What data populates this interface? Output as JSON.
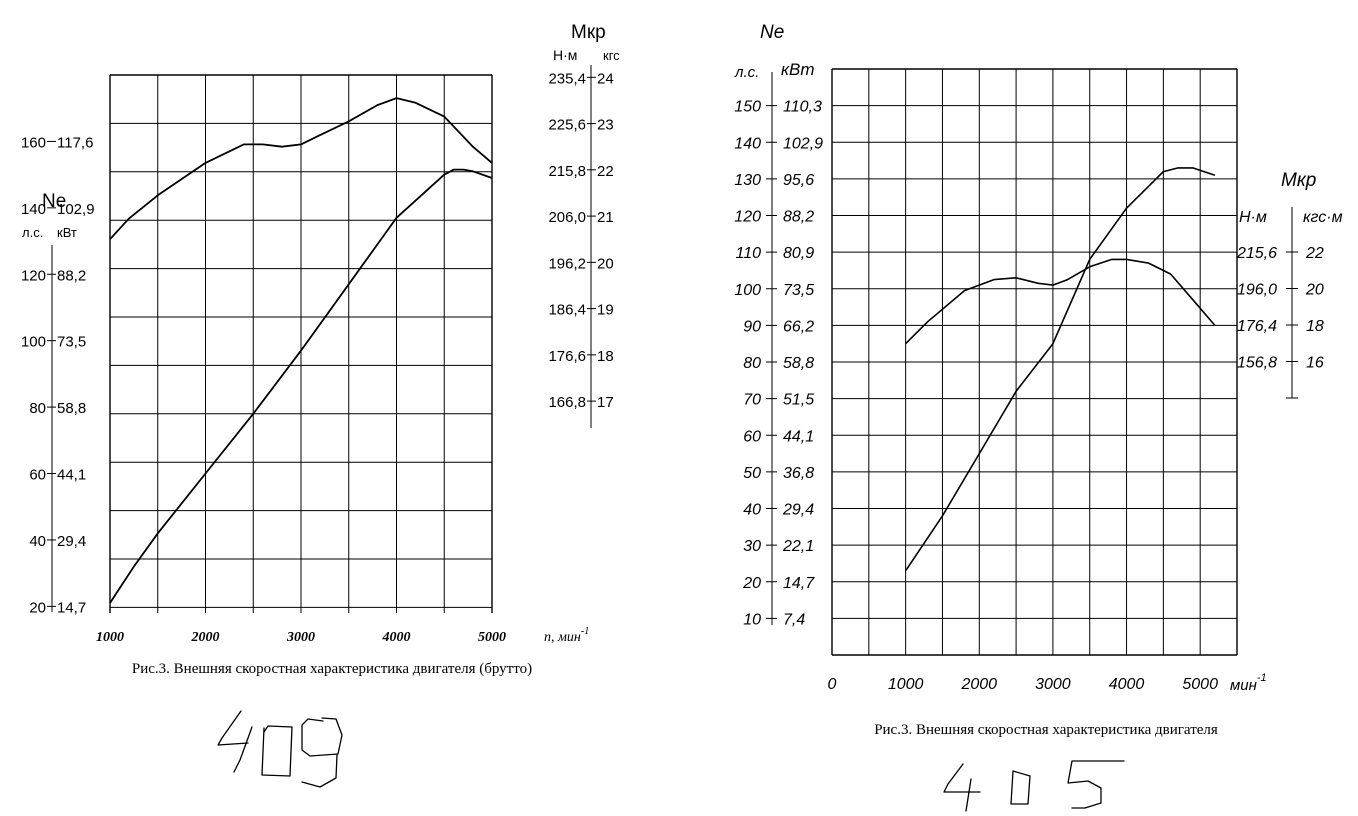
{
  "chart_data": [
    {
      "type": "line",
      "caption": "Рис.3. Внешняя скоростная характеристика двигателя (брутто)",
      "handwritten_label": "409",
      "x": {
        "label": "n, мин",
        "label_superscript": "-1",
        "ticks": [
          "1000",
          "2000",
          "3000",
          "4000",
          "5000"
        ],
        "range": [
          1000,
          5000
        ]
      },
      "left_axis": {
        "title": "Ne",
        "unit_hp": "л.с.",
        "unit_kw": "кВт",
        "range": [
          18,
          180
        ],
        "ticks_hp": [
          "20",
          "40",
          "60",
          "80",
          "100",
          "120",
          "140",
          "160"
        ],
        "ticks_kw": [
          "14,7",
          "29,4",
          "44,1",
          "58,8",
          "73,5",
          "88,2",
          "102,9",
          "117,6"
        ]
      },
      "right_axis": {
        "title": "Мкр",
        "unit_nm": "Н·м",
        "unit_kgf": "кгс",
        "range": [
          16.7,
          24.05
        ],
        "ticks_nm": [
          "166,8",
          "176,6",
          "186,4",
          "196,2",
          "206,0",
          "215,8",
          "225,6",
          "235,4"
        ],
        "ticks_kgf": [
          "17",
          "18",
          "19",
          "20",
          "21",
          "22",
          "23",
          "24"
        ]
      },
      "series": [
        {
          "axis": "left",
          "x": [
            1000,
            1250,
            1500,
            2000,
            2500,
            3000,
            3500,
            4000,
            4500,
            4600,
            4700,
            4800,
            5000
          ],
          "y": [
            21,
            32,
            42,
            60,
            78,
            97,
            117,
            137,
            150,
            151.5,
            151.5,
            151,
            149
          ]
        },
        {
          "axis": "right",
          "x": [
            1000,
            1200,
            1500,
            2000,
            2400,
            2600,
            2800,
            3000,
            3200,
            3500,
            3800,
            4000,
            4200,
            4500,
            4800,
            5000
          ],
          "y": [
            20.5,
            20.95,
            21.45,
            22.15,
            22.55,
            22.55,
            22.5,
            22.55,
            22.75,
            23.05,
            23.4,
            23.55,
            23.45,
            23.15,
            22.5,
            22.15
          ]
        }
      ]
    },
    {
      "type": "line",
      "caption": "Рис.3. Внешняя скоростная характеристика двигателя",
      "handwritten_label": "405",
      "x": {
        "label": "мин",
        "label_superscript": "-1",
        "ticks": [
          "0",
          "1000",
          "2000",
          "3000",
          "4000",
          "5000"
        ],
        "range": [
          0,
          5500
        ]
      },
      "left_axis": {
        "title": "Ne",
        "unit_hp": "л.с.",
        "unit_kw": "кВт",
        "range": [
          0,
          160
        ],
        "ticks_hp": [
          "10",
          "20",
          "30",
          "40",
          "50",
          "60",
          "70",
          "80",
          "90",
          "100",
          "110",
          "120",
          "130",
          "140",
          "150"
        ],
        "ticks_kw": [
          "7,4",
          "14,7",
          "22,1",
          "29,4",
          "36,8",
          "44,1",
          "51,5",
          "58,8",
          "66,2",
          "73,5",
          "80,9",
          "88,2",
          "95,6",
          "102,9",
          "110,3"
        ]
      },
      "right_axis": {
        "title": "Мкр",
        "unit_nm": "Н·м",
        "unit_kgf": "кгс·м",
        "ticks_nm": [
          "215,6",
          "196,0",
          "176,4",
          "156,8"
        ],
        "ticks_kgf": [
          "22",
          "20",
          "18",
          "16"
        ]
      },
      "series": [
        {
          "axis": "left",
          "x": [
            1000,
            1500,
            2000,
            2500,
            3000,
            3500,
            4000,
            4500,
            4700,
            4900,
            5200
          ],
          "y": [
            23,
            38,
            55,
            72,
            85,
            108,
            122,
            132,
            133,
            133,
            131
          ]
        },
        {
          "axis": "left",
          "x": [
            1000,
            1300,
            1800,
            2200,
            2500,
            2800,
            3000,
            3200,
            3500,
            3800,
            4000,
            4300,
            4600,
            4900,
            5200
          ],
          "y": [
            85,
            91,
            99.5,
            102.5,
            103,
            101.5,
            101,
            102.5,
            106,
            108,
            108,
            107,
            104,
            97,
            90
          ]
        }
      ]
    }
  ]
}
